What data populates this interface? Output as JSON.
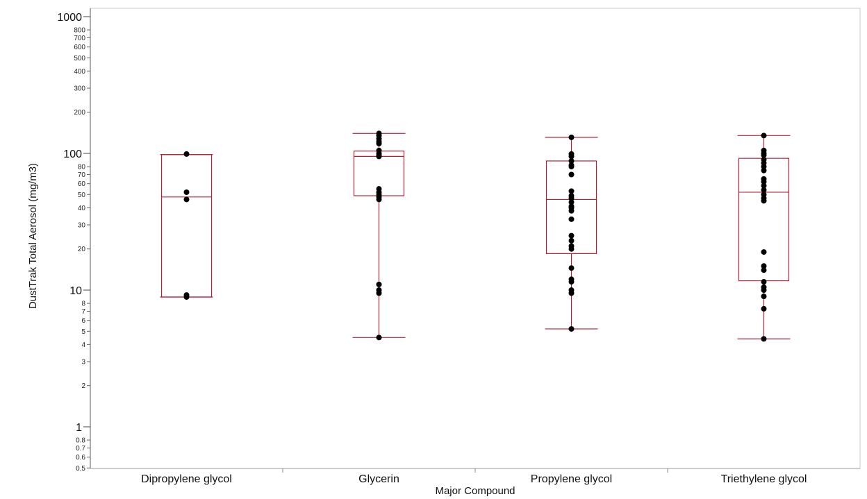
{
  "chart_data": {
    "type": "box",
    "xlabel": "Major Compound",
    "ylabel": "DustTrak Total Aerosol (mg/m3)",
    "yscale": "log",
    "ylim": [
      0.5,
      1200
    ],
    "y_major_ticks": [
      1,
      10,
      100,
      1000
    ],
    "y_minor_ticks": [
      0.5,
      0.6,
      0.7,
      0.8,
      2,
      3,
      4,
      5,
      6,
      7,
      8,
      20,
      30,
      40,
      50,
      60,
      70,
      80,
      200,
      300,
      400,
      500,
      600,
      700,
      800
    ],
    "categories": [
      "Dipropylene glycol",
      "Glycerin",
      "Propylene glycol",
      "Triethylene glycol"
    ],
    "box_color": "#b22234",
    "point_color": "#000000",
    "series": [
      {
        "category": "Dipropylene glycol",
        "q1": 8.9,
        "median": 48,
        "q3": 98,
        "whisker_low": 8.9,
        "whisker_high": 98,
        "points": [
          99,
          52,
          46,
          9.2,
          8.9
        ]
      },
      {
        "category": "Glycerin",
        "q1": 49,
        "median": 95,
        "q3": 104,
        "whisker_low": 4.5,
        "whisker_high": 140,
        "points": [
          140,
          135,
          128,
          122,
          118,
          105,
          100,
          97,
          95,
          55,
          52,
          50,
          48,
          46,
          11,
          10,
          9.5,
          4.5
        ]
      },
      {
        "category": "Propylene glycol",
        "q1": 18.5,
        "median": 46,
        "q3": 88,
        "whisker_low": 5.2,
        "whisker_high": 131,
        "points": [
          131,
          99,
          95,
          88,
          82,
          80,
          70,
          53,
          49,
          47,
          44,
          41,
          40,
          38,
          33,
          25,
          23,
          21,
          20,
          14.5,
          12,
          11.5,
          10,
          9.5,
          5.2
        ]
      },
      {
        "category": "Triethylene glycol",
        "q1": 11.7,
        "median": 52,
        "q3": 92,
        "whisker_low": 4.4,
        "whisker_high": 135,
        "points": [
          135,
          105,
          100,
          97,
          90,
          85,
          80,
          75,
          65,
          62,
          58,
          54,
          50,
          47,
          45,
          19,
          15,
          14,
          11.5,
          10.5,
          10,
          9,
          7.3,
          4.4
        ]
      }
    ]
  }
}
